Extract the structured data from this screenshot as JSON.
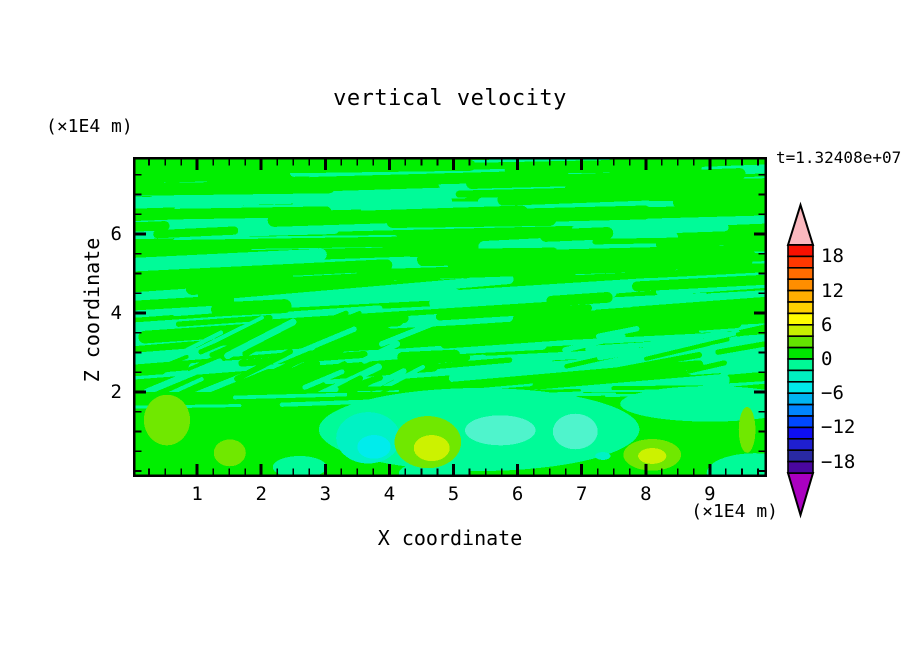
{
  "header": {
    "title": "vertical velocity",
    "time_label": "t=1.32408e+07",
    "y_unit": "(×1E4 m)",
    "x_unit": "(×1E4 m)"
  },
  "chart_data": {
    "type": "filled-contour-heatmap",
    "title": "vertical velocity",
    "xlabel": "X coordinate",
    "ylabel": "Z coordinate",
    "axis_unit": "×1E4 m",
    "time_annotation": "t=1.32408e+07",
    "x_range": [
      0,
      9.89
    ],
    "z_range": [
      -0.15,
      7.95
    ],
    "x_ticks": [
      1,
      2,
      3,
      4,
      5,
      6,
      7,
      8,
      9
    ],
    "x_tick_labels": [
      "1",
      "2",
      "3",
      "4",
      "5",
      "6",
      "7",
      "8",
      "9"
    ],
    "x_minor_step": 0.25,
    "z_ticks": [
      2,
      4,
      6
    ],
    "z_tick_labels": [
      "2",
      "4",
      "6"
    ],
    "z_minor_step": 0.5,
    "grid": false,
    "legend_position": "right-colorbar",
    "contour_interval": 2,
    "value_range": [
      -20,
      20
    ],
    "colorbar": {
      "tick_labels": [
        "18",
        "12",
        "6",
        "0",
        "−6",
        "−12",
        "−18"
      ],
      "tick_values": [
        18,
        12,
        6,
        0,
        -6,
        -12,
        -18
      ],
      "colors_top_to_bottom": [
        "#F81000",
        "#FF3800",
        "#FF6C00",
        "#FF8E00",
        "#FFAE00",
        "#FFD000",
        "#FFFC00",
        "#C8F000",
        "#64E400",
        "#00E400",
        "#00F896",
        "#00EFC0",
        "#00E9E9",
        "#00B5F2",
        "#0085FF",
        "#0048FF",
        "#0E0EF5",
        "#1F1FD0",
        "#2929A3",
        "#4A079F"
      ],
      "over_color": "#FBB8BE",
      "under_color": "#AA00C0"
    },
    "field": {
      "base_color": "#00EF00",
      "streak_color": "#00FB98",
      "upper_region": "alternating wavy horizontal streaks of w in 0..2 (green) and -2..0 (spring green) from z≈2 up to z≈8",
      "lower_region": "smoother boundary layer below z≈2 with convective cells from -6 to +6",
      "boundary_z": 2.0
    },
    "features": [
      {
        "kind": "region",
        "x": 5.4,
        "z": 1.05,
        "rx": 2.5,
        "rz": 1.05,
        "color": "#00FB98",
        "w": "-2..0"
      },
      {
        "kind": "region",
        "x": 9.0,
        "z": 1.7,
        "rx": 1.4,
        "rz": 0.45,
        "color": "#00FB98",
        "w": "-2..0"
      },
      {
        "kind": "region",
        "x": 9.7,
        "z": -0.05,
        "rx": 0.75,
        "rz": 0.5,
        "color": "#00FB98",
        "w": "-2..0"
      },
      {
        "kind": "region",
        "x": 4.7,
        "z": -0.05,
        "rx": 0.55,
        "rz": 0.3,
        "color": "#00FB98",
        "w": "-2..0"
      },
      {
        "kind": "region",
        "x": 2.6,
        "z": 0.1,
        "rx": 0.42,
        "rz": 0.28,
        "color": "#00FB98",
        "w": "-2..0"
      },
      {
        "kind": "updraft",
        "x": 0.53,
        "z": 1.29,
        "rx": 0.36,
        "rz": 0.64,
        "color": "#70E800",
        "w": "+2..+4"
      },
      {
        "kind": "updraft",
        "x": 1.51,
        "z": 0.46,
        "rx": 0.25,
        "rz": 0.34,
        "color": "#70E800",
        "w": "+2..+4"
      },
      {
        "kind": "downdraft",
        "x": 3.67,
        "z": 0.84,
        "rx": 0.5,
        "rz": 0.65,
        "color": "#00F2C4",
        "w": "-4..-2"
      },
      {
        "kind": "downdraft-core",
        "x": 3.76,
        "z": 0.61,
        "rx": 0.26,
        "rz": 0.3,
        "color": "#00ECEC",
        "w": "-6..-4"
      },
      {
        "kind": "downdraft",
        "x": 5.73,
        "z": 1.03,
        "rx": 0.55,
        "rz": 0.38,
        "color": "#4FF4CC",
        "w": "-4..-2"
      },
      {
        "kind": "downdraft",
        "x": 6.9,
        "z": 1.0,
        "rx": 0.35,
        "rz": 0.45,
        "color": "#4FF4CC",
        "w": "-4..-2"
      },
      {
        "kind": "downdraft",
        "x": 7.33,
        "z": 0.38,
        "rx": 0.12,
        "rz": 0.1,
        "color": "#00F2C4",
        "w": "-4..-2"
      },
      {
        "kind": "updraft",
        "x": 4.6,
        "z": 0.73,
        "rx": 0.52,
        "rz": 0.66,
        "color": "#70E800",
        "w": "+2..+4"
      },
      {
        "kind": "updraft-core",
        "x": 4.66,
        "z": 0.58,
        "rx": 0.28,
        "rz": 0.33,
        "color": "#CCF200",
        "w": "+4..+6"
      },
      {
        "kind": "updraft",
        "x": 8.1,
        "z": 0.41,
        "rx": 0.45,
        "rz": 0.4,
        "color": "#70E800",
        "w": "+2..+4"
      },
      {
        "kind": "updraft-core",
        "x": 8.1,
        "z": 0.38,
        "rx": 0.22,
        "rz": 0.2,
        "color": "#CCF200",
        "w": "+4..+6"
      },
      {
        "kind": "updraft",
        "x": 9.58,
        "z": 1.04,
        "rx": 0.13,
        "rz": 0.58,
        "color": "#70E800",
        "w": "+2..+4"
      }
    ]
  }
}
